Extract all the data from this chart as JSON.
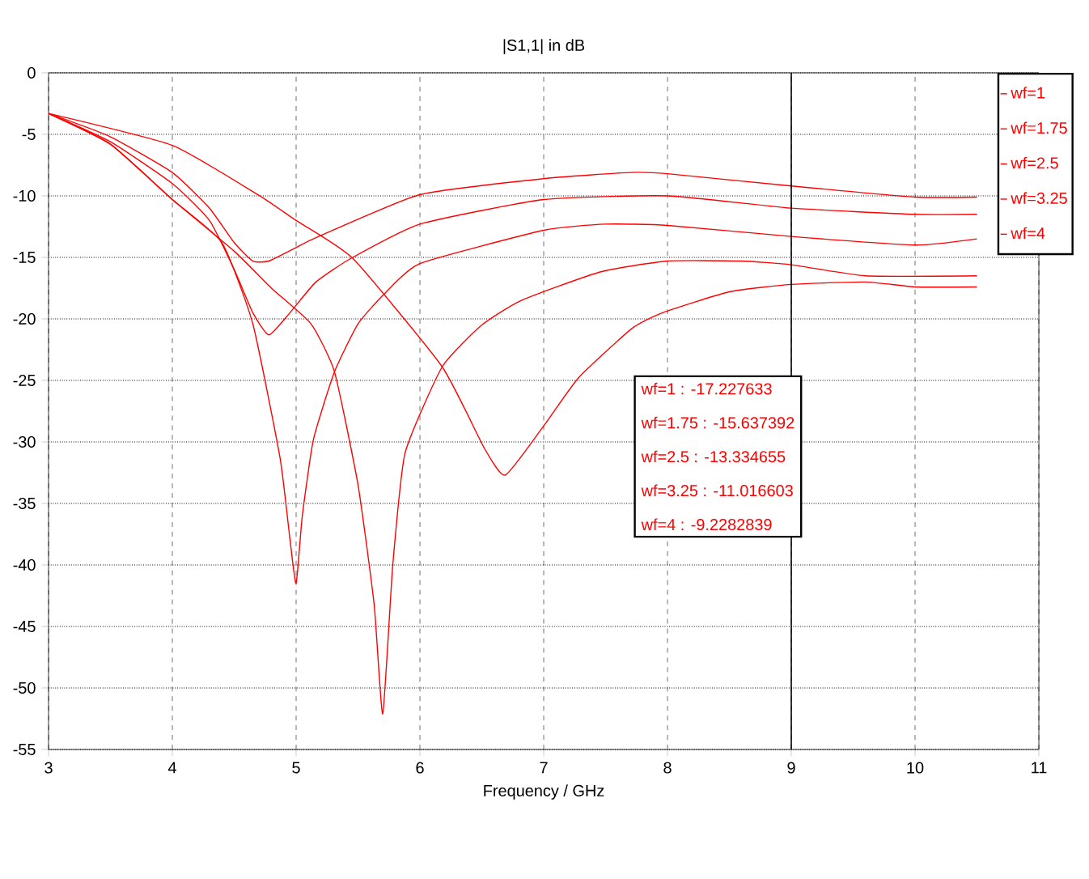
{
  "chart_data": {
    "type": "line",
    "title": "|S1,1| in dB",
    "xlabel": "Frequency / GHz",
    "xlim": [
      3,
      11
    ],
    "ylim": [
      -55,
      0
    ],
    "xticks": [
      3,
      4,
      5,
      6,
      7,
      8,
      9,
      10,
      11
    ],
    "yticks": [
      -55,
      -50,
      -45,
      -40,
      -35,
      -30,
      -25,
      -20,
      -15,
      -10,
      -5,
      0
    ],
    "grid": true,
    "legend": "top right",
    "marker": "none",
    "line_style": "solid",
    "series": [
      {
        "name": "wf=1",
        "color": "#ff0000",
        "x": [
          3,
          4,
          4.69,
          5.0,
          5.46,
          6.18,
          6.52,
          6.69,
          7.0,
          7.28,
          7.71,
          7.96,
          8.5,
          9,
          9.6,
          10.0,
          10.5
        ],
        "values": [
          -3.3,
          -5.9,
          -9.9,
          -12.0,
          -15.1,
          -23.9,
          -30.5,
          -32.7,
          -28.7,
          -24.8,
          -20.8,
          -19.5,
          -17.8,
          -17.2,
          -17.0,
          -17.4,
          -17.4
        ]
      },
      {
        "name": "wf=1.75",
        "color": "#ff0000",
        "x": [
          3,
          3.5,
          4,
          4.5,
          4.8,
          5.12,
          5.31,
          5.5,
          5.63,
          5.7,
          5.78,
          5.88,
          6.18,
          6.5,
          6.82,
          7.45,
          8.0,
          8.6,
          9,
          9.6,
          10.5
        ],
        "values": [
          -3.3,
          -5.8,
          -10.3,
          -14.5,
          -17.5,
          -20.4,
          -24.3,
          -33.5,
          -43.2,
          -52.1,
          -40.1,
          -30.9,
          -23.9,
          -20.5,
          -18.5,
          -16.2,
          -15.3,
          -15.3,
          -15.6,
          -16.5,
          -16.5
        ]
      },
      {
        "name": "wf=2.5",
        "color": "#ff0000",
        "x": [
          3,
          3.5,
          4,
          4.4,
          4.65,
          4.87,
          4.95,
          5.0,
          5.05,
          5.14,
          5.31,
          5.5,
          5.71,
          6.0,
          7.0,
          7.5,
          8.0,
          9,
          10.0,
          10.5
        ],
        "values": [
          -3.3,
          -5.8,
          -10.3,
          -13.8,
          -20.4,
          -31.3,
          -37.9,
          -41.5,
          -36.0,
          -29.8,
          -24.3,
          -20.4,
          -18.0,
          -15.5,
          -12.8,
          -12.3,
          -12.4,
          -13.3,
          -14.0,
          -13.5
        ]
      },
      {
        "name": "wf=3.25",
        "color": "#ff0000",
        "x": [
          3,
          3.5,
          4,
          4.3,
          4.5,
          4.65,
          4.78,
          4.95,
          5.16,
          5.44,
          6.0,
          7.0,
          8.0,
          9,
          10.0,
          10.5
        ],
        "values": [
          -3.3,
          -5.6,
          -9.0,
          -12.0,
          -16.0,
          -19.5,
          -21.3,
          -19.5,
          -17.0,
          -15.1,
          -12.3,
          -10.3,
          -10.0,
          -11.0,
          -11.5,
          -11.5
        ]
      },
      {
        "name": "wf=4",
        "color": "#ff0000",
        "x": [
          3,
          3.5,
          4,
          4.3,
          4.5,
          4.65,
          4.78,
          5.0,
          5.16,
          6.0,
          7.0,
          7.7,
          8.0,
          9,
          10.0,
          10.5
        ],
        "values": [
          -3.3,
          -5.2,
          -8.1,
          -11.0,
          -13.8,
          -15.3,
          -15.3,
          -14.2,
          -13.4,
          -9.9,
          -8.6,
          -8.1,
          -8.2,
          -9.2,
          -10.1,
          -10.1
        ]
      }
    ],
    "ref_lines": [
      {
        "axis": "x",
        "value": 9,
        "color": "#000000"
      }
    ],
    "annotations": [
      "wf=1 : -17.227633",
      "wf=1.75 : -15.637392",
      "wf=2.5 : -13.334655",
      "wf=3.25 : -11.016603",
      "wf=4 : -9.2282839"
    ]
  }
}
